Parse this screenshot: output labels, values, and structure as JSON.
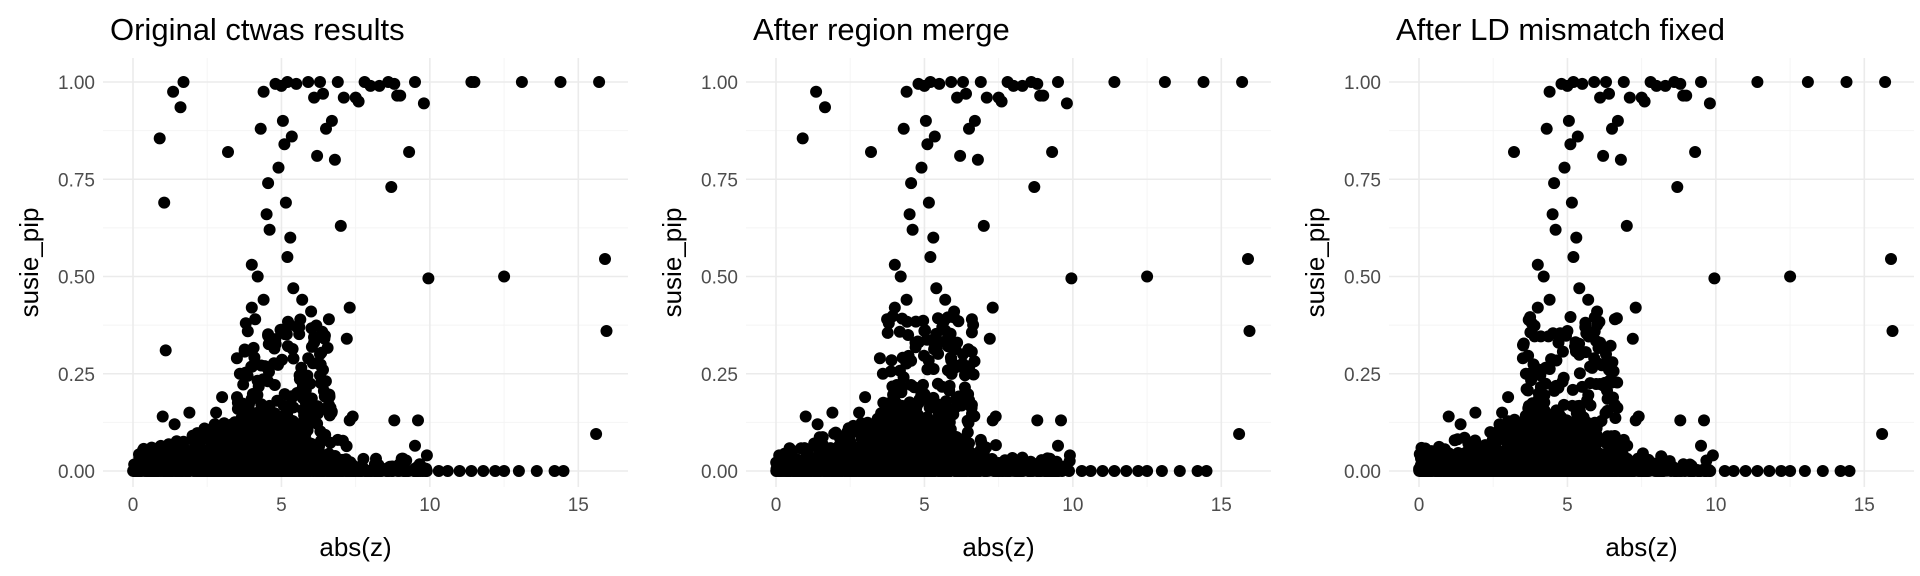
{
  "chart_data": [
    {
      "type": "scatter",
      "title": "Original ctwas results",
      "xlabel": "abs(z)",
      "ylabel": "susie_pip",
      "xlim": [
        0,
        16
      ],
      "ylim": [
        0,
        1
      ],
      "xticks": [
        0,
        5,
        10,
        15
      ],
      "yticks": [
        0.0,
        0.25,
        0.5,
        0.75,
        1.0
      ],
      "ytick_labels": [
        "0.00",
        "0.25",
        "0.50",
        "0.75",
        "1.00"
      ],
      "grid": true,
      "point_color": "#000000",
      "highlights": [
        [
          0.9,
          0.855
        ],
        [
          1.05,
          0.69
        ],
        [
          1.1,
          0.31
        ],
        [
          1.35,
          0.975
        ],
        [
          1.6,
          0.935
        ],
        [
          1.7,
          1.0
        ],
        [
          3.2,
          0.82
        ],
        [
          3.8,
          0.38
        ],
        [
          4.0,
          0.53
        ],
        [
          4.3,
          0.88
        ],
        [
          4.4,
          0.975
        ],
        [
          4.5,
          0.66
        ],
        [
          4.55,
          0.74
        ],
        [
          4.6,
          0.62
        ],
        [
          4.8,
          0.995
        ],
        [
          4.9,
          0.78
        ],
        [
          5.0,
          0.99
        ],
        [
          5.05,
          0.9
        ],
        [
          5.1,
          0.84
        ],
        [
          5.15,
          0.69
        ],
        [
          5.2,
          1.0
        ],
        [
          5.3,
          0.6
        ],
        [
          5.35,
          0.86
        ],
        [
          5.4,
          0.47
        ],
        [
          5.5,
          0.995
        ],
        [
          5.7,
          0.44
        ],
        [
          5.9,
          1.0
        ],
        [
          6.0,
          0.41
        ],
        [
          6.1,
          0.96
        ],
        [
          6.2,
          0.81
        ],
        [
          6.3,
          1.0
        ],
        [
          6.4,
          0.97
        ],
        [
          6.5,
          0.88
        ],
        [
          6.6,
          0.39
        ],
        [
          6.7,
          0.9
        ],
        [
          6.8,
          0.8
        ],
        [
          6.9,
          1.0
        ],
        [
          7.0,
          0.63
        ],
        [
          7.1,
          0.96
        ],
        [
          7.2,
          0.34
        ],
        [
          7.3,
          0.42
        ],
        [
          7.5,
          0.96
        ],
        [
          7.6,
          0.95
        ],
        [
          7.8,
          1.0
        ],
        [
          8.0,
          0.99
        ],
        [
          8.3,
          0.99
        ],
        [
          8.6,
          1.0
        ],
        [
          8.7,
          0.73
        ],
        [
          8.8,
          0.995
        ],
        [
          8.9,
          0.965
        ],
        [
          9.0,
          0.965
        ],
        [
          9.3,
          0.82
        ],
        [
          9.5,
          1.0
        ],
        [
          9.8,
          0.945
        ],
        [
          9.95,
          0.495
        ],
        [
          11.4,
          1.0
        ],
        [
          11.5,
          1.0
        ],
        [
          12.5,
          0.5
        ],
        [
          13.1,
          1.0
        ],
        [
          14.4,
          1.0
        ],
        [
          15.6,
          0.095
        ],
        [
          15.7,
          1.0
        ],
        [
          15.9,
          0.545
        ],
        [
          15.95,
          0.36
        ],
        [
          8.8,
          0.13
        ],
        [
          9.5,
          0.065
        ],
        [
          9.6,
          0.13
        ],
        [
          9.9,
          0.04
        ],
        [
          10.3,
          0.0
        ],
        [
          10.6,
          0.0
        ],
        [
          11.0,
          0.0
        ],
        [
          11.4,
          0.0
        ],
        [
          11.8,
          0.0
        ],
        [
          12.2,
          0.0
        ],
        [
          12.5,
          0.0
        ],
        [
          13.0,
          0.0
        ],
        [
          13.6,
          0.0
        ],
        [
          14.2,
          0.0
        ],
        [
          14.5,
          0.0
        ],
        [
          3.5,
          0.29
        ],
        [
          3.6,
          0.25
        ],
        [
          4.0,
          0.42
        ],
        [
          4.2,
          0.5
        ],
        [
          4.4,
          0.44
        ],
        [
          4.7,
          0.33
        ],
        [
          5.0,
          0.36
        ],
        [
          5.2,
          0.55
        ],
        [
          5.6,
          0.37
        ],
        [
          5.9,
          0.29
        ],
        [
          6.1,
          0.33
        ],
        [
          6.3,
          0.3
        ],
        [
          6.4,
          0.26
        ],
        [
          6.6,
          0.17
        ],
        [
          6.9,
          0.08
        ],
        [
          7.3,
          0.13
        ],
        [
          7.4,
          0.14
        ],
        [
          0.3,
          0.02
        ],
        [
          0.7,
          0.03
        ],
        [
          1.0,
          0.14
        ],
        [
          1.4,
          0.12
        ],
        [
          1.9,
          0.15
        ],
        [
          2.4,
          0.1
        ],
        [
          2.8,
          0.15
        ],
        [
          3.0,
          0.19
        ]
      ]
    },
    {
      "type": "scatter",
      "title": "After region merge",
      "xlabel": "abs(z)",
      "ylabel": "susie_pip",
      "xlim": [
        0,
        16
      ],
      "ylim": [
        0,
        1
      ],
      "xticks": [
        0,
        5,
        10,
        15
      ],
      "yticks": [
        0.0,
        0.25,
        0.5,
        0.75,
        1.0
      ],
      "ytick_labels": [
        "0.00",
        "0.25",
        "0.50",
        "0.75",
        "1.00"
      ],
      "grid": true,
      "point_color": "#000000",
      "highlights": [
        [
          0.9,
          0.855
        ],
        [
          1.35,
          0.975
        ],
        [
          1.65,
          0.935
        ],
        [
          3.2,
          0.82
        ],
        [
          3.8,
          0.38
        ],
        [
          4.0,
          0.53
        ],
        [
          4.3,
          0.88
        ],
        [
          4.4,
          0.975
        ],
        [
          4.5,
          0.66
        ],
        [
          4.55,
          0.74
        ],
        [
          4.6,
          0.62
        ],
        [
          4.8,
          0.995
        ],
        [
          4.9,
          0.78
        ],
        [
          5.0,
          0.99
        ],
        [
          5.05,
          0.9
        ],
        [
          5.1,
          0.84
        ],
        [
          5.15,
          0.69
        ],
        [
          5.2,
          1.0
        ],
        [
          5.3,
          0.6
        ],
        [
          5.35,
          0.86
        ],
        [
          5.4,
          0.47
        ],
        [
          5.5,
          0.995
        ],
        [
          5.7,
          0.44
        ],
        [
          5.9,
          1.0
        ],
        [
          6.0,
          0.41
        ],
        [
          6.1,
          0.96
        ],
        [
          6.2,
          0.81
        ],
        [
          6.3,
          1.0
        ],
        [
          6.4,
          0.97
        ],
        [
          6.5,
          0.88
        ],
        [
          6.6,
          0.39
        ],
        [
          6.7,
          0.9
        ],
        [
          6.8,
          0.8
        ],
        [
          6.9,
          1.0
        ],
        [
          7.0,
          0.63
        ],
        [
          7.1,
          0.96
        ],
        [
          7.2,
          0.34
        ],
        [
          7.3,
          0.42
        ],
        [
          7.5,
          0.96
        ],
        [
          7.6,
          0.95
        ],
        [
          7.8,
          1.0
        ],
        [
          8.0,
          0.99
        ],
        [
          8.3,
          0.99
        ],
        [
          8.6,
          1.0
        ],
        [
          8.7,
          0.73
        ],
        [
          8.8,
          0.995
        ],
        [
          8.9,
          0.965
        ],
        [
          9.0,
          0.965
        ],
        [
          9.3,
          0.82
        ],
        [
          9.5,
          1.0
        ],
        [
          9.8,
          0.945
        ],
        [
          9.95,
          0.495
        ],
        [
          11.4,
          1.0
        ],
        [
          12.5,
          0.5
        ],
        [
          13.1,
          1.0
        ],
        [
          14.4,
          1.0
        ],
        [
          15.6,
          0.095
        ],
        [
          15.7,
          1.0
        ],
        [
          15.9,
          0.545
        ],
        [
          15.95,
          0.36
        ],
        [
          8.8,
          0.13
        ],
        [
          9.5,
          0.065
        ],
        [
          9.6,
          0.13
        ],
        [
          9.9,
          0.04
        ],
        [
          10.3,
          0.0
        ],
        [
          10.6,
          0.0
        ],
        [
          11.0,
          0.0
        ],
        [
          11.4,
          0.0
        ],
        [
          11.8,
          0.0
        ],
        [
          12.2,
          0.0
        ],
        [
          12.5,
          0.0
        ],
        [
          13.0,
          0.0
        ],
        [
          13.6,
          0.0
        ],
        [
          14.2,
          0.0
        ],
        [
          14.5,
          0.0
        ],
        [
          3.5,
          0.29
        ],
        [
          3.6,
          0.25
        ],
        [
          4.0,
          0.42
        ],
        [
          4.2,
          0.5
        ],
        [
          4.4,
          0.44
        ],
        [
          4.7,
          0.33
        ],
        [
          5.0,
          0.36
        ],
        [
          5.2,
          0.55
        ],
        [
          5.6,
          0.37
        ],
        [
          5.9,
          0.29
        ],
        [
          6.1,
          0.33
        ],
        [
          6.3,
          0.3
        ],
        [
          6.4,
          0.26
        ],
        [
          6.6,
          0.17
        ],
        [
          6.9,
          0.08
        ],
        [
          7.3,
          0.13
        ],
        [
          7.4,
          0.14
        ],
        [
          0.3,
          0.02
        ],
        [
          0.7,
          0.03
        ],
        [
          1.0,
          0.14
        ],
        [
          1.4,
          0.12
        ],
        [
          1.9,
          0.15
        ],
        [
          2.4,
          0.1
        ],
        [
          2.8,
          0.15
        ],
        [
          3.0,
          0.19
        ]
      ]
    },
    {
      "type": "scatter",
      "title": "After LD mismatch fixed",
      "xlabel": "abs(z)",
      "ylabel": "susie_pip",
      "xlim": [
        0,
        16
      ],
      "ylim": [
        0,
        1
      ],
      "xticks": [
        0,
        5,
        10,
        15
      ],
      "yticks": [
        0.0,
        0.25,
        0.5,
        0.75,
        1.0
      ],
      "ytick_labels": [
        "0.00",
        "0.25",
        "0.50",
        "0.75",
        "1.00"
      ],
      "grid": true,
      "point_color": "#000000",
      "highlights": [
        [
          3.2,
          0.82
        ],
        [
          3.8,
          0.38
        ],
        [
          4.0,
          0.53
        ],
        [
          4.3,
          0.88
        ],
        [
          4.4,
          0.975
        ],
        [
          4.5,
          0.66
        ],
        [
          4.55,
          0.74
        ],
        [
          4.6,
          0.62
        ],
        [
          4.8,
          0.995
        ],
        [
          4.9,
          0.78
        ],
        [
          5.0,
          0.99
        ],
        [
          5.05,
          0.9
        ],
        [
          5.1,
          0.84
        ],
        [
          5.15,
          0.69
        ],
        [
          5.2,
          1.0
        ],
        [
          5.3,
          0.6
        ],
        [
          5.35,
          0.86
        ],
        [
          5.4,
          0.47
        ],
        [
          5.5,
          0.995
        ],
        [
          5.7,
          0.44
        ],
        [
          5.9,
          1.0
        ],
        [
          6.0,
          0.41
        ],
        [
          6.1,
          0.96
        ],
        [
          6.2,
          0.81
        ],
        [
          6.3,
          1.0
        ],
        [
          6.4,
          0.97
        ],
        [
          6.5,
          0.88
        ],
        [
          6.6,
          0.39
        ],
        [
          6.7,
          0.9
        ],
        [
          6.8,
          0.8
        ],
        [
          6.9,
          1.0
        ],
        [
          7.0,
          0.63
        ],
        [
          7.1,
          0.96
        ],
        [
          7.2,
          0.34
        ],
        [
          7.3,
          0.42
        ],
        [
          7.5,
          0.96
        ],
        [
          7.6,
          0.95
        ],
        [
          7.8,
          1.0
        ],
        [
          8.0,
          0.99
        ],
        [
          8.3,
          0.99
        ],
        [
          8.6,
          1.0
        ],
        [
          8.7,
          0.73
        ],
        [
          8.8,
          0.995
        ],
        [
          8.9,
          0.965
        ],
        [
          9.0,
          0.965
        ],
        [
          9.3,
          0.82
        ],
        [
          9.5,
          1.0
        ],
        [
          9.8,
          0.945
        ],
        [
          9.95,
          0.495
        ],
        [
          11.4,
          1.0
        ],
        [
          12.5,
          0.5
        ],
        [
          13.1,
          1.0
        ],
        [
          14.4,
          1.0
        ],
        [
          15.6,
          0.095
        ],
        [
          15.7,
          1.0
        ],
        [
          15.9,
          0.545
        ],
        [
          15.95,
          0.36
        ],
        [
          8.8,
          0.13
        ],
        [
          9.5,
          0.065
        ],
        [
          9.6,
          0.13
        ],
        [
          9.9,
          0.04
        ],
        [
          10.3,
          0.0
        ],
        [
          10.6,
          0.0
        ],
        [
          11.0,
          0.0
        ],
        [
          11.4,
          0.0
        ],
        [
          11.8,
          0.0
        ],
        [
          12.2,
          0.0
        ],
        [
          12.5,
          0.0
        ],
        [
          13.0,
          0.0
        ],
        [
          13.6,
          0.0
        ],
        [
          14.2,
          0.0
        ],
        [
          14.5,
          0.0
        ],
        [
          3.5,
          0.29
        ],
        [
          3.6,
          0.25
        ],
        [
          4.0,
          0.42
        ],
        [
          4.2,
          0.5
        ],
        [
          4.4,
          0.44
        ],
        [
          4.7,
          0.33
        ],
        [
          5.0,
          0.36
        ],
        [
          5.2,
          0.55
        ],
        [
          5.6,
          0.37
        ],
        [
          5.9,
          0.29
        ],
        [
          6.1,
          0.33
        ],
        [
          6.3,
          0.3
        ],
        [
          6.4,
          0.26
        ],
        [
          6.6,
          0.17
        ],
        [
          6.9,
          0.08
        ],
        [
          7.3,
          0.13
        ],
        [
          7.4,
          0.14
        ],
        [
          0.3,
          0.02
        ],
        [
          0.7,
          0.03
        ],
        [
          1.0,
          0.14
        ],
        [
          1.4,
          0.12
        ],
        [
          1.9,
          0.15
        ],
        [
          2.4,
          0.1
        ],
        [
          2.8,
          0.15
        ],
        [
          3.0,
          0.19
        ]
      ]
    }
  ]
}
